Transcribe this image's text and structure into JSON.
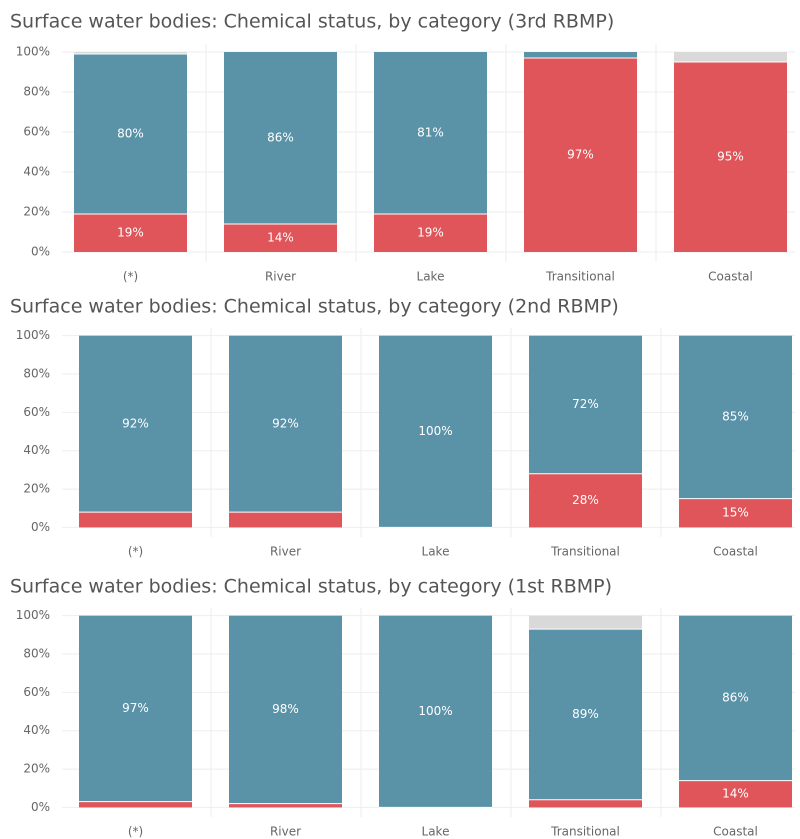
{
  "chart_data": [
    {
      "type": "bar",
      "stacked": true,
      "title": "Surface water bodies: Chemical status, by category (3rd RBMP)",
      "categories": [
        "(*)",
        "River",
        "Lake",
        "Transitional",
        "Coastal"
      ],
      "series": [
        {
          "color": "#e0555a",
          "values": [
            19,
            14,
            19,
            97,
            95
          ],
          "value_labels": [
            "19%",
            "14%",
            "19%",
            "97%",
            "95%"
          ]
        },
        {
          "color": "#5a92a8",
          "values": [
            80,
            86,
            81,
            3,
            0
          ],
          "value_labels": [
            "80%",
            "86%",
            "81%",
            null,
            null
          ]
        },
        {
          "color": "#d9d9d9",
          "values": [
            1,
            0,
            0,
            0,
            5
          ],
          "value_labels": [
            null,
            null,
            null,
            null,
            null
          ]
        }
      ],
      "ylim": [
        -5,
        104
      ],
      "yticks": [
        {
          "value": 0,
          "label": "0%"
        },
        {
          "value": 20,
          "label": "20%"
        },
        {
          "value": 40,
          "label": "40%"
        },
        {
          "value": 60,
          "label": "60%"
        },
        {
          "value": 80,
          "label": "80%"
        },
        {
          "value": 100,
          "label": "100%"
        }
      ],
      "grid": true
    },
    {
      "type": "bar",
      "stacked": true,
      "title": "Surface water bodies: Chemical status, by category (2nd RBMP)",
      "categories": [
        "(*)",
        "River",
        "Lake",
        "Transitional",
        "Coastal"
      ],
      "series": [
        {
          "color": "#e0555a",
          "values": [
            8,
            8,
            0,
            28,
            15
          ],
          "value_labels": [
            null,
            null,
            null,
            "28%",
            "15%"
          ]
        },
        {
          "color": "#5a92a8",
          "values": [
            92,
            92,
            100,
            72,
            85
          ],
          "value_labels": [
            "92%",
            "92%",
            "100%",
            "72%",
            "85%"
          ]
        },
        {
          "color": "#d9d9d9",
          "values": [
            0,
            0,
            0,
            0,
            0
          ],
          "value_labels": [
            null,
            null,
            null,
            null,
            null
          ]
        }
      ],
      "ylim": [
        -5,
        104
      ],
      "yticks": [
        {
          "value": 0,
          "label": "0%"
        },
        {
          "value": 20,
          "label": "20%"
        },
        {
          "value": 40,
          "label": "40%"
        },
        {
          "value": 60,
          "label": "60%"
        },
        {
          "value": 80,
          "label": "80%"
        },
        {
          "value": 100,
          "label": "100%"
        }
      ],
      "grid": true
    },
    {
      "type": "bar",
      "stacked": true,
      "title": "Surface water bodies: Chemical status, by category (1st RBMP)",
      "categories": [
        "(*)",
        "River",
        "Lake",
        "Transitional",
        "Coastal"
      ],
      "series": [
        {
          "color": "#e0555a",
          "values": [
            3,
            2,
            0,
            4,
            14
          ],
          "value_labels": [
            null,
            null,
            null,
            null,
            "14%"
          ]
        },
        {
          "color": "#5a92a8",
          "values": [
            97,
            98,
            100,
            89,
            86
          ],
          "value_labels": [
            "97%",
            "98%",
            "100%",
            "89%",
            "86%"
          ]
        },
        {
          "color": "#d9d9d9",
          "values": [
            0,
            0,
            0,
            7,
            0
          ],
          "value_labels": [
            null,
            null,
            null,
            null,
            null
          ]
        }
      ],
      "ylim": [
        -5,
        104
      ],
      "yticks": [
        {
          "value": 0,
          "label": "0%"
        },
        {
          "value": 20,
          "label": "20%"
        },
        {
          "value": 40,
          "label": "40%"
        },
        {
          "value": 60,
          "label": "60%"
        },
        {
          "value": 80,
          "label": "80%"
        },
        {
          "value": 100,
          "label": "100%"
        }
      ],
      "grid": true
    }
  ]
}
